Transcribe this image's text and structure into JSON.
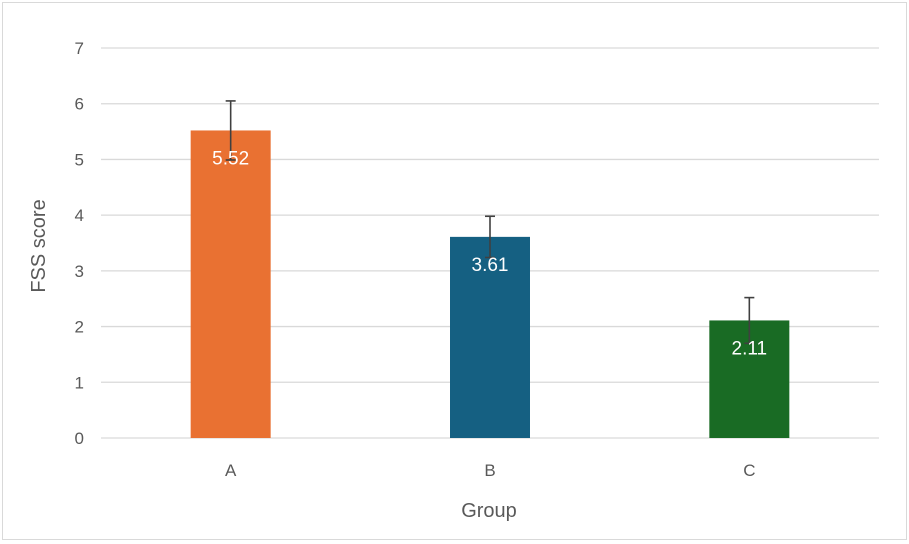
{
  "chart_data": {
    "type": "bar",
    "title": "",
    "xlabel": "Group",
    "ylabel": "FSS score",
    "categories": [
      "A",
      "B",
      "C"
    ],
    "values": [
      5.52,
      3.61,
      2.11
    ],
    "value_labels": [
      "5.52",
      "3.61",
      "2.11"
    ],
    "error_bars": [
      0.53,
      0.37,
      0.41
    ],
    "colors": [
      "#e97132",
      "#156082",
      "#196b24"
    ],
    "ylim": [
      0,
      7
    ],
    "yticks": [
      "0",
      "1",
      "2",
      "3",
      "4",
      "5",
      "6",
      "7"
    ],
    "grid": true,
    "legend": "none"
  }
}
